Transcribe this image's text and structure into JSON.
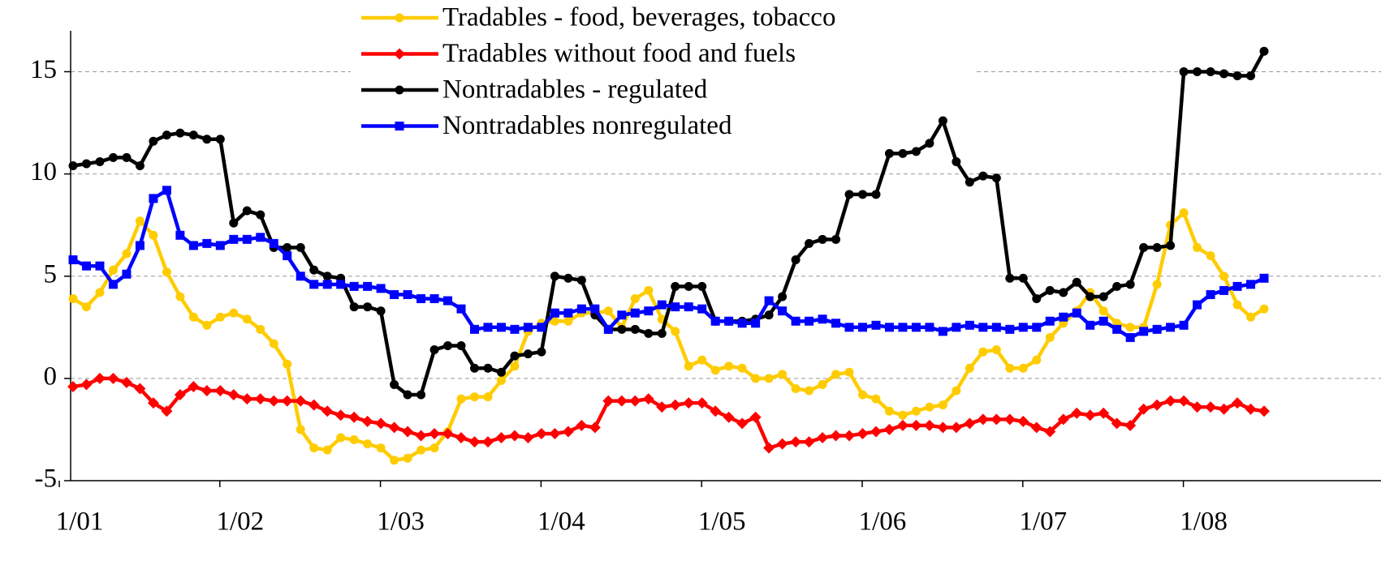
{
  "chart_data": {
    "type": "line",
    "categories": [
      "1/01",
      null,
      null,
      null,
      null,
      null,
      null,
      null,
      null,
      null,
      null,
      null,
      "1/02",
      null,
      null,
      null,
      null,
      null,
      null,
      null,
      null,
      null,
      null,
      null,
      "1/03",
      null,
      null,
      null,
      null,
      null,
      null,
      null,
      null,
      null,
      null,
      null,
      "1/04",
      null,
      null,
      null,
      null,
      null,
      null,
      null,
      null,
      null,
      null,
      null,
      "1/05",
      null,
      null,
      null,
      null,
      null,
      null,
      null,
      null,
      null,
      null,
      null,
      "1/06",
      null,
      null,
      null,
      null,
      null,
      null,
      null,
      null,
      null,
      null,
      null,
      "1/07",
      null,
      null,
      null,
      null,
      null,
      null,
      null,
      null,
      null,
      null,
      null,
      "1/08",
      null,
      null,
      null,
      null,
      null
    ],
    "series": [
      {
        "name": "Tradables - food, beverages, tobacco",
        "color": "#ffcc00",
        "marker": "circle",
        "values": [
          3.9,
          3.5,
          4.2,
          5.3,
          6.1,
          7.7,
          7.0,
          5.2,
          4.0,
          3.0,
          2.6,
          3.0,
          3.2,
          2.9,
          2.4,
          1.7,
          0.7,
          -2.5,
          -3.4,
          -3.5,
          -2.9,
          -3.0,
          -3.2,
          -3.4,
          -4.0,
          -3.9,
          -3.5,
          -3.4,
          -2.6,
          -1.0,
          -0.9,
          -0.9,
          -0.1,
          0.6,
          2.3,
          2.7,
          2.8,
          2.8,
          3.2,
          3.2,
          3.3,
          2.5,
          3.9,
          4.3,
          2.9,
          2.3,
          0.6,
          0.9,
          0.4,
          0.6,
          0.5,
          0.0,
          0.0,
          0.2,
          -0.5,
          -0.6,
          -0.3,
          0.2,
          0.3,
          -0.8,
          -1.0,
          -1.6,
          -1.8,
          -1.6,
          -1.4,
          -1.3,
          -0.6,
          0.5,
          1.3,
          1.4,
          0.5,
          0.5,
          0.9,
          2.0,
          2.7,
          3.3,
          4.2,
          3.3,
          2.7,
          2.5,
          2.5,
          4.6,
          7.5,
          8.1,
          6.4,
          6.0,
          5.0,
          3.6,
          3.0,
          3.4
        ]
      },
      {
        "name": "Tradables without food and fuels",
        "color": "#ff0000",
        "marker": "diamond",
        "values": [
          -0.4,
          -0.3,
          0.0,
          0.0,
          -0.2,
          -0.5,
          -1.2,
          -1.6,
          -0.8,
          -0.4,
          -0.6,
          -0.6,
          -0.8,
          -1.0,
          -1.0,
          -1.1,
          -1.1,
          -1.1,
          -1.3,
          -1.6,
          -1.8,
          -1.9,
          -2.1,
          -2.2,
          -2.4,
          -2.6,
          -2.8,
          -2.7,
          -2.7,
          -2.9,
          -3.1,
          -3.1,
          -2.9,
          -2.8,
          -2.9,
          -2.7,
          -2.7,
          -2.6,
          -2.3,
          -2.4,
          -1.1,
          -1.1,
          -1.1,
          -1.0,
          -1.4,
          -1.3,
          -1.2,
          -1.2,
          -1.6,
          -1.9,
          -2.2,
          -1.9,
          -3.4,
          -3.2,
          -3.1,
          -3.1,
          -2.9,
          -2.8,
          -2.8,
          -2.7,
          -2.6,
          -2.5,
          -2.3,
          -2.3,
          -2.3,
          -2.4,
          -2.4,
          -2.2,
          -2.0,
          -2.0,
          -2.0,
          -2.1,
          -2.4,
          -2.6,
          -2.0,
          -1.7,
          -1.8,
          -1.7,
          -2.2,
          -2.3,
          -1.5,
          -1.3,
          -1.1,
          -1.1,
          -1.4,
          -1.4,
          -1.5,
          -1.2,
          -1.5,
          -1.6
        ]
      },
      {
        "name": "Nontradables - regulated",
        "color": "#000000",
        "marker": "circle",
        "values": [
          10.4,
          10.5,
          10.6,
          10.8,
          10.8,
          10.4,
          11.6,
          11.9,
          12.0,
          11.9,
          11.7,
          11.7,
          7.6,
          8.2,
          8.0,
          6.4,
          6.4,
          6.4,
          5.3,
          5.0,
          4.9,
          3.5,
          3.5,
          3.3,
          -0.3,
          -0.8,
          -0.8,
          1.4,
          1.6,
          1.6,
          0.5,
          0.5,
          0.3,
          1.1,
          1.2,
          1.3,
          5.0,
          4.9,
          4.8,
          3.1,
          2.4,
          2.4,
          2.4,
          2.2,
          2.2,
          4.5,
          4.5,
          4.5,
          2.8,
          2.8,
          2.8,
          2.9,
          3.1,
          4.0,
          5.8,
          6.6,
          6.8,
          6.8,
          9.0,
          9.0,
          9.0,
          11.0,
          11.0,
          11.1,
          11.5,
          12.6,
          10.6,
          9.6,
          9.9,
          9.8,
          4.9,
          4.9,
          3.9,
          4.3,
          4.2,
          4.7,
          4.0,
          4.0,
          4.5,
          4.6,
          6.4,
          6.4,
          6.5,
          15.0,
          15.0,
          15.0,
          14.9,
          14.8,
          14.8,
          16.0
        ]
      },
      {
        "name": "Nontradables nonregulated",
        "color": "#0000ff",
        "marker": "square",
        "values": [
          5.8,
          5.5,
          5.5,
          4.6,
          5.1,
          6.5,
          8.8,
          9.2,
          7.0,
          6.5,
          6.6,
          6.5,
          6.8,
          6.8,
          6.9,
          6.6,
          6.0,
          5.0,
          4.6,
          4.6,
          4.6,
          4.5,
          4.5,
          4.4,
          4.1,
          4.1,
          3.9,
          3.9,
          3.8,
          3.4,
          2.4,
          2.5,
          2.5,
          2.4,
          2.5,
          2.5,
          3.2,
          3.2,
          3.4,
          3.4,
          2.4,
          3.1,
          3.2,
          3.3,
          3.6,
          3.5,
          3.5,
          3.4,
          2.8,
          2.8,
          2.7,
          2.7,
          3.8,
          3.3,
          2.8,
          2.8,
          2.9,
          2.7,
          2.5,
          2.5,
          2.6,
          2.5,
          2.5,
          2.5,
          2.5,
          2.3,
          2.5,
          2.6,
          2.5,
          2.5,
          2.4,
          2.5,
          2.5,
          2.8,
          3.0,
          3.2,
          2.6,
          2.8,
          2.4,
          2.0,
          2.3,
          2.4,
          2.5,
          2.6,
          3.6,
          4.1,
          4.3,
          4.5,
          4.6,
          4.9
        ]
      }
    ],
    "ylim": [
      -5,
      17
    ],
    "yticks": [
      -5,
      0,
      5,
      10,
      15
    ],
    "grid": true
  }
}
